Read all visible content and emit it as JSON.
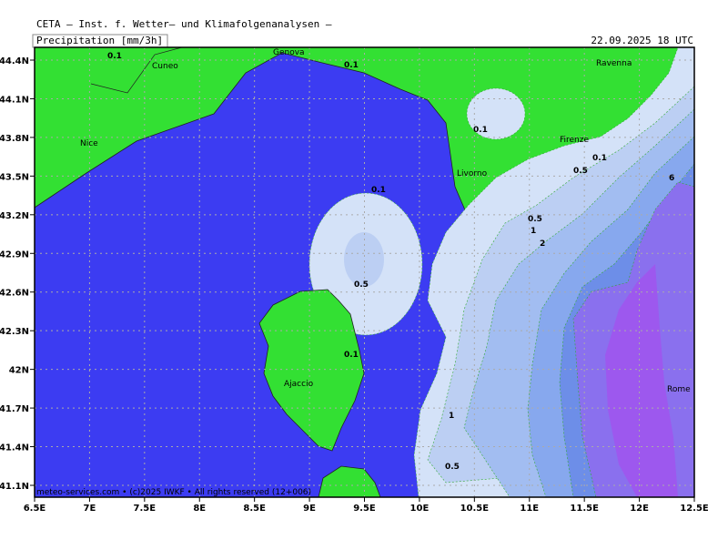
{
  "header": {
    "title": "CETA — Inst. f. Wetter— und Klimafolgenanalysen —",
    "variable": "Precipitation [mm/3h]",
    "valid_time": "22.09.2025 18 UTC"
  },
  "footer": "meteo-services.com • (c)2025 IWKF • All rights reserved (12+006)",
  "x_labels": [
    "6.5E",
    "7E",
    "7.5E",
    "8E",
    "8.5E",
    "9E",
    "9.5E",
    "10E",
    "10.5E",
    "11E",
    "11.5E",
    "12E",
    "12.5E"
  ],
  "y_labels": [
    "44.4N",
    "44.1N",
    "43.8N",
    "43.5N",
    "43.2N",
    "42.9N",
    "42.6N",
    "42.3N",
    "42N",
    "41.7N",
    "41.4N",
    "41.1N"
  ],
  "places": [
    "Cuneo",
    "Genova",
    "Nice",
    "Livorno",
    "Firenze",
    "Ravenna",
    "Ajaccio",
    "Rome"
  ],
  "contour_labels": [
    "0.1",
    "0.1",
    "0.1",
    "0.1",
    "0.1",
    "0.5",
    "0.1",
    "0.5",
    "1",
    "2",
    "6",
    "0.5",
    "1",
    "0.5"
  ]
}
